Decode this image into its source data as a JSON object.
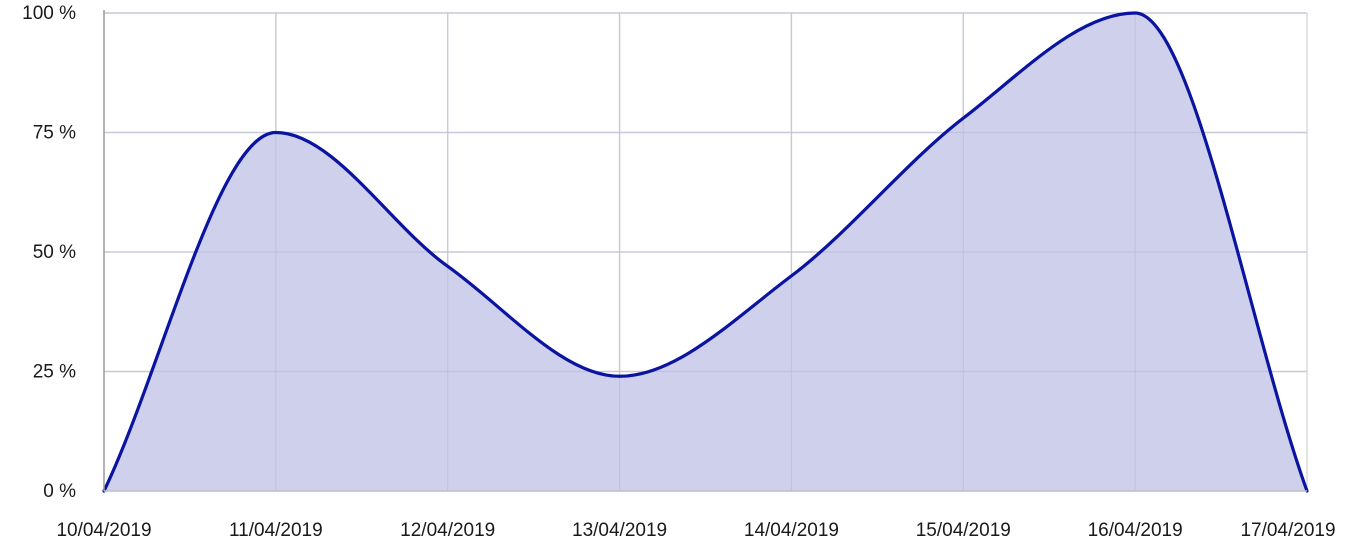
{
  "chart_data": {
    "type": "area",
    "title": "",
    "xlabel": "",
    "ylabel": "",
    "x": [
      "10/04/2019",
      "11/04/2019",
      "12/04/2019",
      "13/04/2019",
      "14/04/2019",
      "15/04/2019",
      "16/04/2019",
      "17/04/2019"
    ],
    "y_ticks": [
      "0 %",
      "25 %",
      "50 %",
      "75 %",
      "100 %"
    ],
    "ylim": [
      0,
      100
    ],
    "y_unit": "%",
    "series": [
      {
        "values": [
          0,
          75,
          47,
          24,
          45,
          78,
          100,
          0
        ],
        "line_color": "#0a14a0",
        "fill_color": "#cbcdeb"
      }
    ],
    "grid": true,
    "legend": "none",
    "smooth": true
  }
}
